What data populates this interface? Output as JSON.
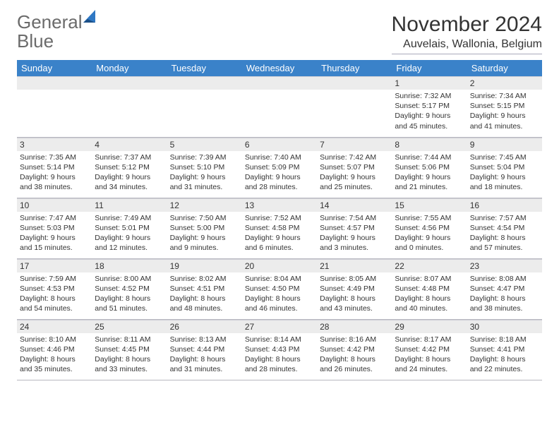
{
  "brand": {
    "name_a": "General",
    "name_b": "Blue"
  },
  "title": "November 2024",
  "location": "Auvelais, Wallonia, Belgium",
  "colors": {
    "header_bg": "#3a82c9",
    "header_fg": "#ffffff",
    "daynum_bg": "#ececec",
    "rule": "#b8b8c0",
    "brand_gray": "#6b6b6b",
    "brand_blue": "#2f78c4"
  },
  "fonts": {
    "title_size": 30,
    "location_size": 16,
    "dayhead_size": 13,
    "body_size": 10.5
  },
  "weekdays": [
    "Sunday",
    "Monday",
    "Tuesday",
    "Wednesday",
    "Thursday",
    "Friday",
    "Saturday"
  ],
  "weeks": [
    [
      null,
      null,
      null,
      null,
      null,
      {
        "n": "1",
        "sr": "7:32 AM",
        "ss": "5:17 PM",
        "dl": "9 hours and 45 minutes."
      },
      {
        "n": "2",
        "sr": "7:34 AM",
        "ss": "5:15 PM",
        "dl": "9 hours and 41 minutes."
      }
    ],
    [
      {
        "n": "3",
        "sr": "7:35 AM",
        "ss": "5:14 PM",
        "dl": "9 hours and 38 minutes."
      },
      {
        "n": "4",
        "sr": "7:37 AM",
        "ss": "5:12 PM",
        "dl": "9 hours and 34 minutes."
      },
      {
        "n": "5",
        "sr": "7:39 AM",
        "ss": "5:10 PM",
        "dl": "9 hours and 31 minutes."
      },
      {
        "n": "6",
        "sr": "7:40 AM",
        "ss": "5:09 PM",
        "dl": "9 hours and 28 minutes."
      },
      {
        "n": "7",
        "sr": "7:42 AM",
        "ss": "5:07 PM",
        "dl": "9 hours and 25 minutes."
      },
      {
        "n": "8",
        "sr": "7:44 AM",
        "ss": "5:06 PM",
        "dl": "9 hours and 21 minutes."
      },
      {
        "n": "9",
        "sr": "7:45 AM",
        "ss": "5:04 PM",
        "dl": "9 hours and 18 minutes."
      }
    ],
    [
      {
        "n": "10",
        "sr": "7:47 AM",
        "ss": "5:03 PM",
        "dl": "9 hours and 15 minutes."
      },
      {
        "n": "11",
        "sr": "7:49 AM",
        "ss": "5:01 PM",
        "dl": "9 hours and 12 minutes."
      },
      {
        "n": "12",
        "sr": "7:50 AM",
        "ss": "5:00 PM",
        "dl": "9 hours and 9 minutes."
      },
      {
        "n": "13",
        "sr": "7:52 AM",
        "ss": "4:58 PM",
        "dl": "9 hours and 6 minutes."
      },
      {
        "n": "14",
        "sr": "7:54 AM",
        "ss": "4:57 PM",
        "dl": "9 hours and 3 minutes."
      },
      {
        "n": "15",
        "sr": "7:55 AM",
        "ss": "4:56 PM",
        "dl": "9 hours and 0 minutes."
      },
      {
        "n": "16",
        "sr": "7:57 AM",
        "ss": "4:54 PM",
        "dl": "8 hours and 57 minutes."
      }
    ],
    [
      {
        "n": "17",
        "sr": "7:59 AM",
        "ss": "4:53 PM",
        "dl": "8 hours and 54 minutes."
      },
      {
        "n": "18",
        "sr": "8:00 AM",
        "ss": "4:52 PM",
        "dl": "8 hours and 51 minutes."
      },
      {
        "n": "19",
        "sr": "8:02 AM",
        "ss": "4:51 PM",
        "dl": "8 hours and 48 minutes."
      },
      {
        "n": "20",
        "sr": "8:04 AM",
        "ss": "4:50 PM",
        "dl": "8 hours and 46 minutes."
      },
      {
        "n": "21",
        "sr": "8:05 AM",
        "ss": "4:49 PM",
        "dl": "8 hours and 43 minutes."
      },
      {
        "n": "22",
        "sr": "8:07 AM",
        "ss": "4:48 PM",
        "dl": "8 hours and 40 minutes."
      },
      {
        "n": "23",
        "sr": "8:08 AM",
        "ss": "4:47 PM",
        "dl": "8 hours and 38 minutes."
      }
    ],
    [
      {
        "n": "24",
        "sr": "8:10 AM",
        "ss": "4:46 PM",
        "dl": "8 hours and 35 minutes."
      },
      {
        "n": "25",
        "sr": "8:11 AM",
        "ss": "4:45 PM",
        "dl": "8 hours and 33 minutes."
      },
      {
        "n": "26",
        "sr": "8:13 AM",
        "ss": "4:44 PM",
        "dl": "8 hours and 31 minutes."
      },
      {
        "n": "27",
        "sr": "8:14 AM",
        "ss": "4:43 PM",
        "dl": "8 hours and 28 minutes."
      },
      {
        "n": "28",
        "sr": "8:16 AM",
        "ss": "4:42 PM",
        "dl": "8 hours and 26 minutes."
      },
      {
        "n": "29",
        "sr": "8:17 AM",
        "ss": "4:42 PM",
        "dl": "8 hours and 24 minutes."
      },
      {
        "n": "30",
        "sr": "8:18 AM",
        "ss": "4:41 PM",
        "dl": "8 hours and 22 minutes."
      }
    ]
  ],
  "labels": {
    "sunrise": "Sunrise:",
    "sunset": "Sunset:",
    "daylight": "Daylight:"
  }
}
